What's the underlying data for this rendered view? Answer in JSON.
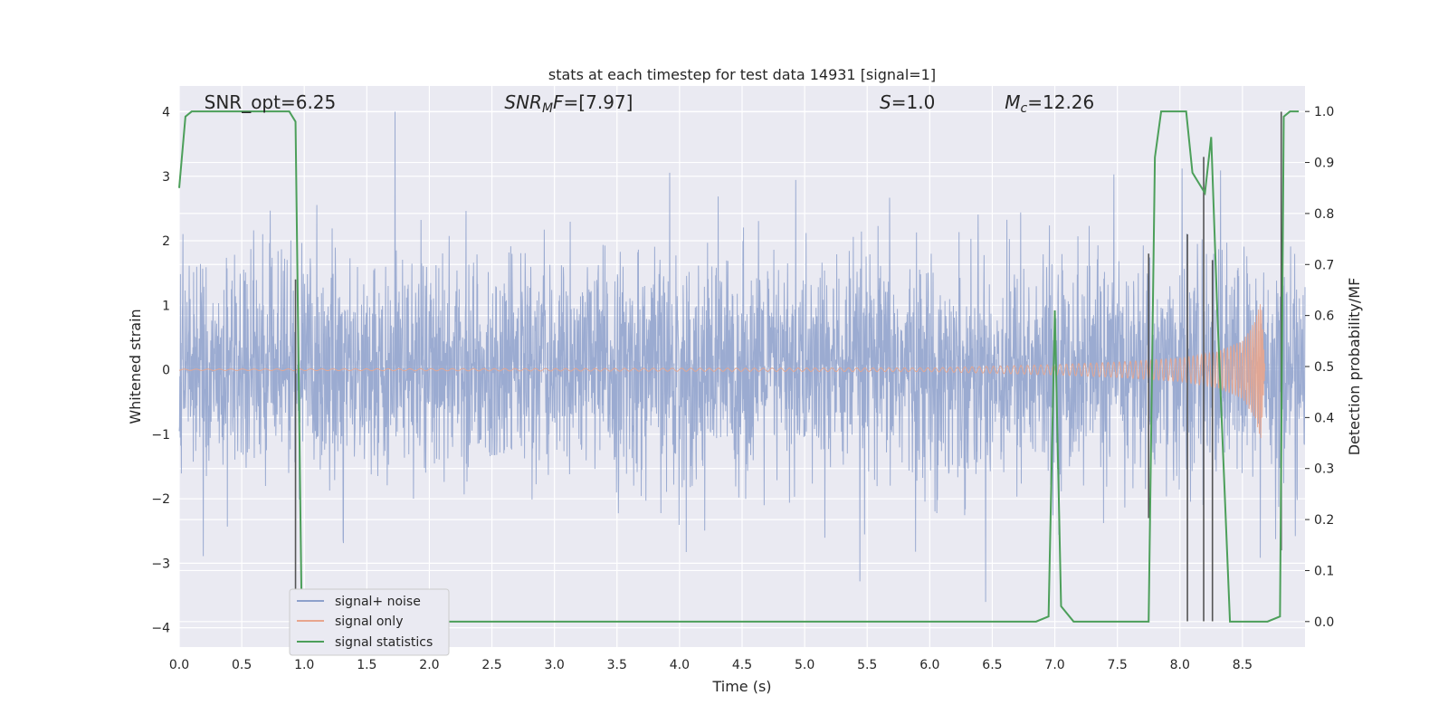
{
  "chart_data": {
    "type": "line",
    "title": "stats at each timestep for test data 14931 [signal=1]",
    "xlabel": "Time (s)",
    "ylabel_left": "Whitened strain",
    "ylabel_right": "Detection probability/MF",
    "xlim": [
      0.0,
      9.0
    ],
    "ylim_left": [
      -4.3,
      4.4
    ],
    "ylim_right": [
      -0.05,
      1.05
    ],
    "x_ticks": [
      0.0,
      0.5,
      1.0,
      1.5,
      2.0,
      2.5,
      3.0,
      3.5,
      4.0,
      4.5,
      5.0,
      5.5,
      6.0,
      6.5,
      7.0,
      7.5,
      8.0,
      8.5
    ],
    "x_tick_labels": [
      "0.0",
      "0.5",
      "1.0",
      "1.5",
      "2.0",
      "2.5",
      "3.0",
      "3.5",
      "4.0",
      "4.5",
      "5.0",
      "5.5",
      "6.0",
      "6.5",
      "7.0",
      "7.5",
      "8.0",
      "8.5"
    ],
    "y_ticks_left": [
      -4,
      -3,
      -2,
      -1,
      0,
      1,
      2,
      3,
      4
    ],
    "y_tick_labels_left": [
      "−4",
      "−3",
      "−2",
      "−1",
      "0",
      "1",
      "2",
      "3",
      "4"
    ],
    "y_ticks_right": [
      0.0,
      0.1,
      0.2,
      0.3,
      0.4,
      0.5,
      0.6,
      0.7,
      0.8,
      0.9,
      1.0
    ],
    "y_tick_labels_right": [
      "0.0",
      "0.1",
      "0.2",
      "0.3",
      "0.4",
      "0.5",
      "0.6",
      "0.7",
      "0.8",
      "0.9",
      "1.0"
    ],
    "grid": true,
    "legend": {
      "placement": "lower-left",
      "entries": [
        "signal+ noise",
        "signal only",
        "signal statistics"
      ]
    },
    "annotations": [
      {
        "text": "SNR_opt=6.25",
        "x": 0.2,
        "y": 4.05
      },
      {
        "text": "SNR_MF=[7.97]",
        "x": 2.6,
        "y": 4.05
      },
      {
        "text": "S=1.0",
        "x": 5.6,
        "y": 4.05
      },
      {
        "text": "M_c=12.26",
        "x": 6.6,
        "y": 4.05
      }
    ],
    "series": [
      {
        "name": "signal+ noise",
        "axis": "left",
        "color": "#8da0cb",
        "noise_std": 0.85,
        "x_range": [
          0.0,
          9.0
        ],
        "y_range_observed": [
          -3.6,
          4.0
        ]
      },
      {
        "name": "signal only",
        "axis": "left",
        "color": "#e8a58d",
        "description_points": {
          "x": [
            0.0,
            6.0,
            7.0,
            7.5,
            8.0,
            8.3,
            8.5,
            8.6,
            8.65,
            8.68
          ],
          "envelope": [
            0.01,
            0.03,
            0.08,
            0.12,
            0.18,
            0.28,
            0.45,
            0.75,
            1.1,
            0.0
          ]
        }
      },
      {
        "name": "signal statistics",
        "axis": "right",
        "color": "#4c9f5a",
        "x": [
          0.0,
          0.05,
          0.1,
          0.2,
          0.4,
          0.6,
          0.8,
          0.88,
          0.93,
          0.98,
          1.0,
          1.05,
          1.1,
          2.0,
          3.0,
          4.0,
          5.0,
          6.0,
          6.85,
          6.95,
          7.0,
          7.05,
          7.15,
          7.5,
          7.75,
          7.8,
          7.85,
          7.93,
          8.05,
          8.1,
          8.2,
          8.25,
          8.3,
          8.4,
          8.5,
          8.7,
          8.8,
          8.83,
          8.88,
          8.95
        ],
        "y": [
          0.85,
          0.99,
          1.0,
          1.0,
          1.0,
          1.0,
          1.0,
          1.0,
          0.98,
          0.0,
          0.0,
          0.0,
          0.0,
          0.0,
          0.0,
          0.0,
          0.0,
          0.0,
          0.0,
          0.01,
          0.61,
          0.03,
          0.0,
          0.0,
          0.0,
          0.91,
          1.0,
          1.0,
          1.0,
          0.88,
          0.84,
          0.95,
          0.6,
          0.0,
          0.0,
          0.0,
          0.01,
          0.99,
          1.0,
          1.0
        ]
      }
    ],
    "vertical_lines": {
      "color": "#555555",
      "x": [
        0.93,
        7.75,
        8.06,
        8.19,
        8.26,
        8.81
      ],
      "y_left_range": [
        [
          -4.0,
          1.4
        ],
        [
          -2.3,
          1.8
        ],
        [
          -3.9,
          2.1
        ],
        [
          -3.9,
          3.3
        ],
        [
          -3.9,
          1.7
        ],
        [
          -2.8,
          4.0
        ]
      ]
    }
  }
}
